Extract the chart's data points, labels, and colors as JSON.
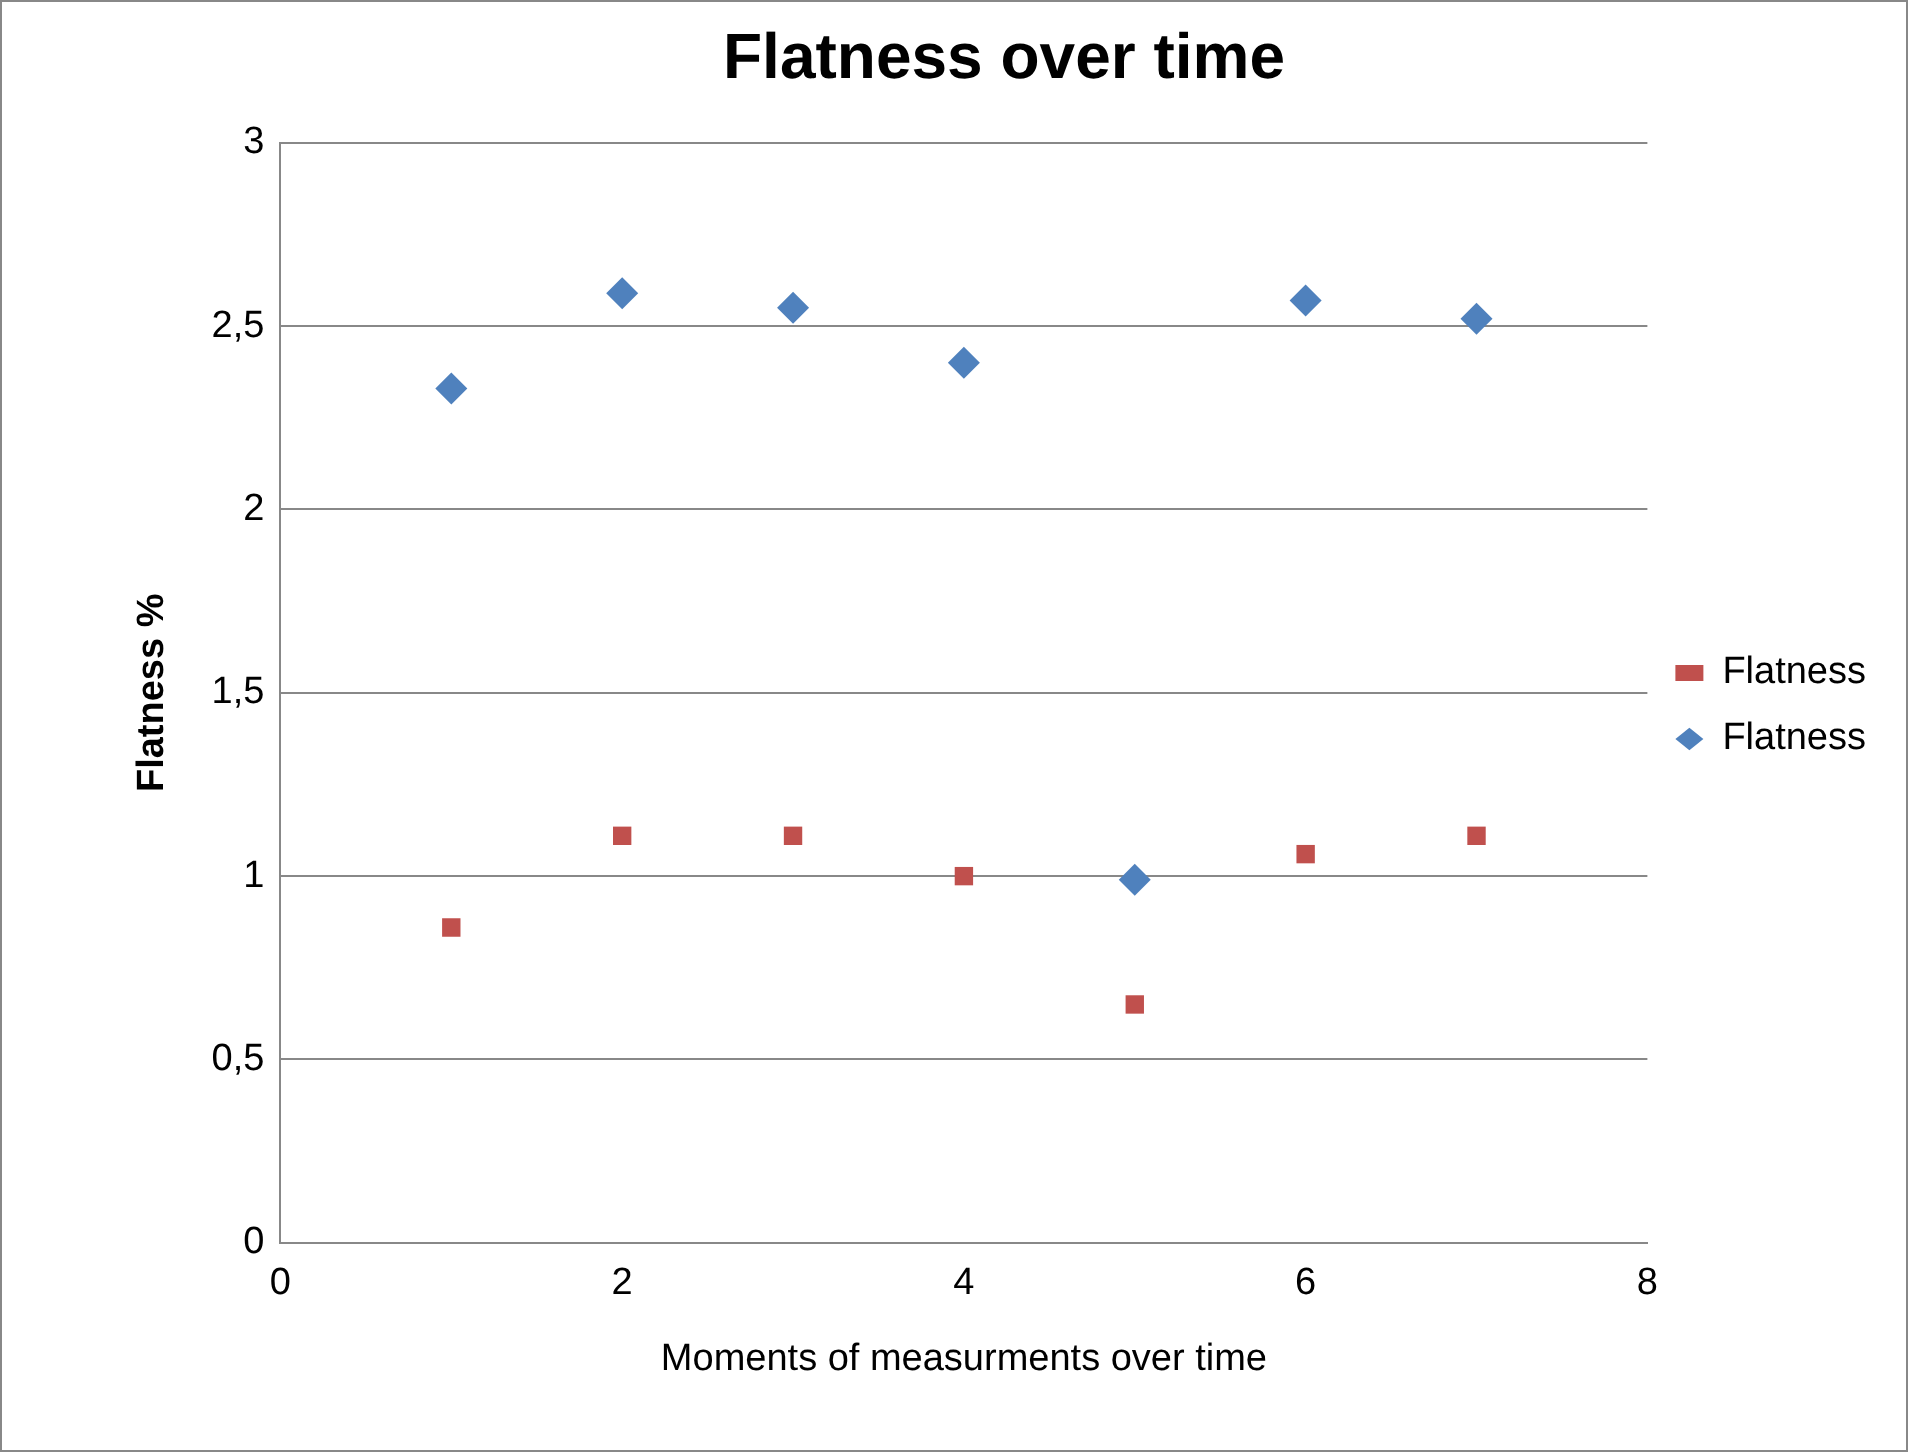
{
  "chart_data": {
    "type": "scatter",
    "title": "Flatness over time",
    "xlabel": "Moments of measurments over time",
    "ylabel": "Flatness %",
    "series": [
      {
        "name": "Flatness",
        "color": "#c0504d",
        "marker": "square",
        "x": [
          1,
          2,
          3,
          4,
          5,
          6,
          7
        ],
        "values": [
          0.86,
          1.11,
          1.11,
          1.0,
          0.65,
          1.06,
          1.11
        ]
      },
      {
        "name": "Flatness",
        "color": "#4f81bd",
        "marker": "diamond",
        "x": [
          1,
          2,
          3,
          4,
          5,
          6,
          7
        ],
        "values": [
          2.33,
          2.59,
          2.55,
          2.4,
          0.99,
          2.57,
          2.52
        ]
      }
    ],
    "xlim": [
      0,
      8
    ],
    "xticks": [
      0,
      2,
      4,
      6,
      8
    ],
    "ylim": [
      0,
      3
    ],
    "yticks": [
      0,
      {
        "value": 0.5,
        "label": "0,5"
      },
      1,
      {
        "value": 1.5,
        "label": "1,5"
      },
      2,
      {
        "value": 2.5,
        "label": "2,5"
      },
      3
    ],
    "grid": "y",
    "legend": "right"
  }
}
